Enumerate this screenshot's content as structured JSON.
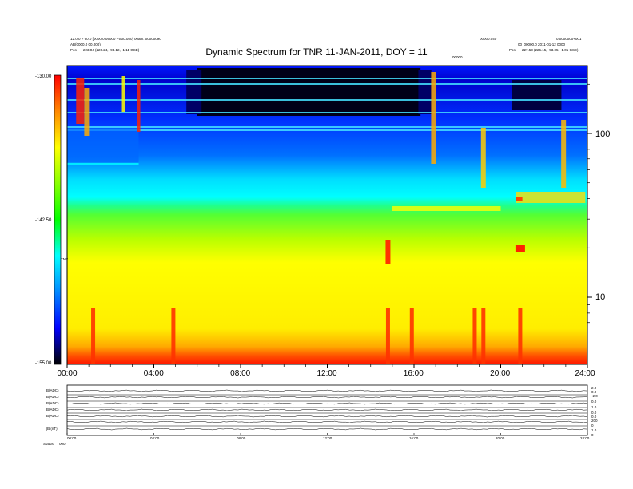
{
  "header": {
    "left_line1": "12.0.0 + 90.0 [0000.0.09000 PS00.050] 00am: 00000090",
    "left_line2": "AB(0000.0 00.000)",
    "left_pos_label": "Pos",
    "left_pos_value": "223.04 (226.24, -93.12, -1.11 GSE)",
    "right_line1_a": "00000.040",
    "right_line1_b": "0.0000000+001",
    "right_line2": "00_00000.0  2011-01-12 0000",
    "right_pos_label": "Pos",
    "right_pos_value": "227.53 (226.15, -93.05, -1.01 GSE)",
    "marker": "00000",
    "corner": "000"
  },
  "chart_data": {
    "type": "heatmap",
    "title": "Dynamic Spectrum for TNR 11-JAN-2011, DOY = 11",
    "xlabel": "",
    "ylabel": "",
    "x_ticks": [
      "00:00",
      "04:00",
      "08:00",
      "12:00",
      "16:00",
      "20:00",
      "24:00"
    ],
    "x_range_hours": [
      0,
      24
    ],
    "y_scale": "log",
    "y_ticks": [
      "100",
      "10"
    ],
    "y_tick_values": [
      100,
      10
    ],
    "y_range": [
      5,
      300
    ],
    "colorbar": {
      "label": "TNR",
      "ticks": [
        "-130.00",
        "-142.50",
        "-155.00"
      ],
      "range": [
        -155.0,
        -130.0
      ],
      "colors": [
        "#ff0000",
        "#ff8800",
        "#ffff00",
        "#88ff00",
        "#00ff00",
        "#00ffff",
        "#0088ff",
        "#0000ff",
        "#000000"
      ]
    },
    "colors": {
      "red": "#ff1a00",
      "orange": "#ff8c00",
      "yellow": "#ffff00",
      "green": "#33ff33",
      "cyan": "#00ffff",
      "blue": "#0040ff",
      "black": "#000010"
    }
  },
  "timeseries": {
    "panel_labels": [
      "B(ADC)",
      "B(ADC)",
      "B(ADC)",
      "B(ADC)",
      "B(ADC)",
      "|B|(nT)"
    ],
    "left_ticks": [
      "00:00",
      "04:00",
      "08:00",
      "12:00",
      "16:00",
      "20:00",
      "24:00"
    ],
    "right_values": [
      "2.0",
      "0.0",
      "-2.0",
      "0.0",
      "1.0",
      "0.0",
      "0.0",
      "200",
      "0",
      "1.0",
      "0"
    ],
    "footer_label": "Status",
    "footer_value": "000"
  }
}
